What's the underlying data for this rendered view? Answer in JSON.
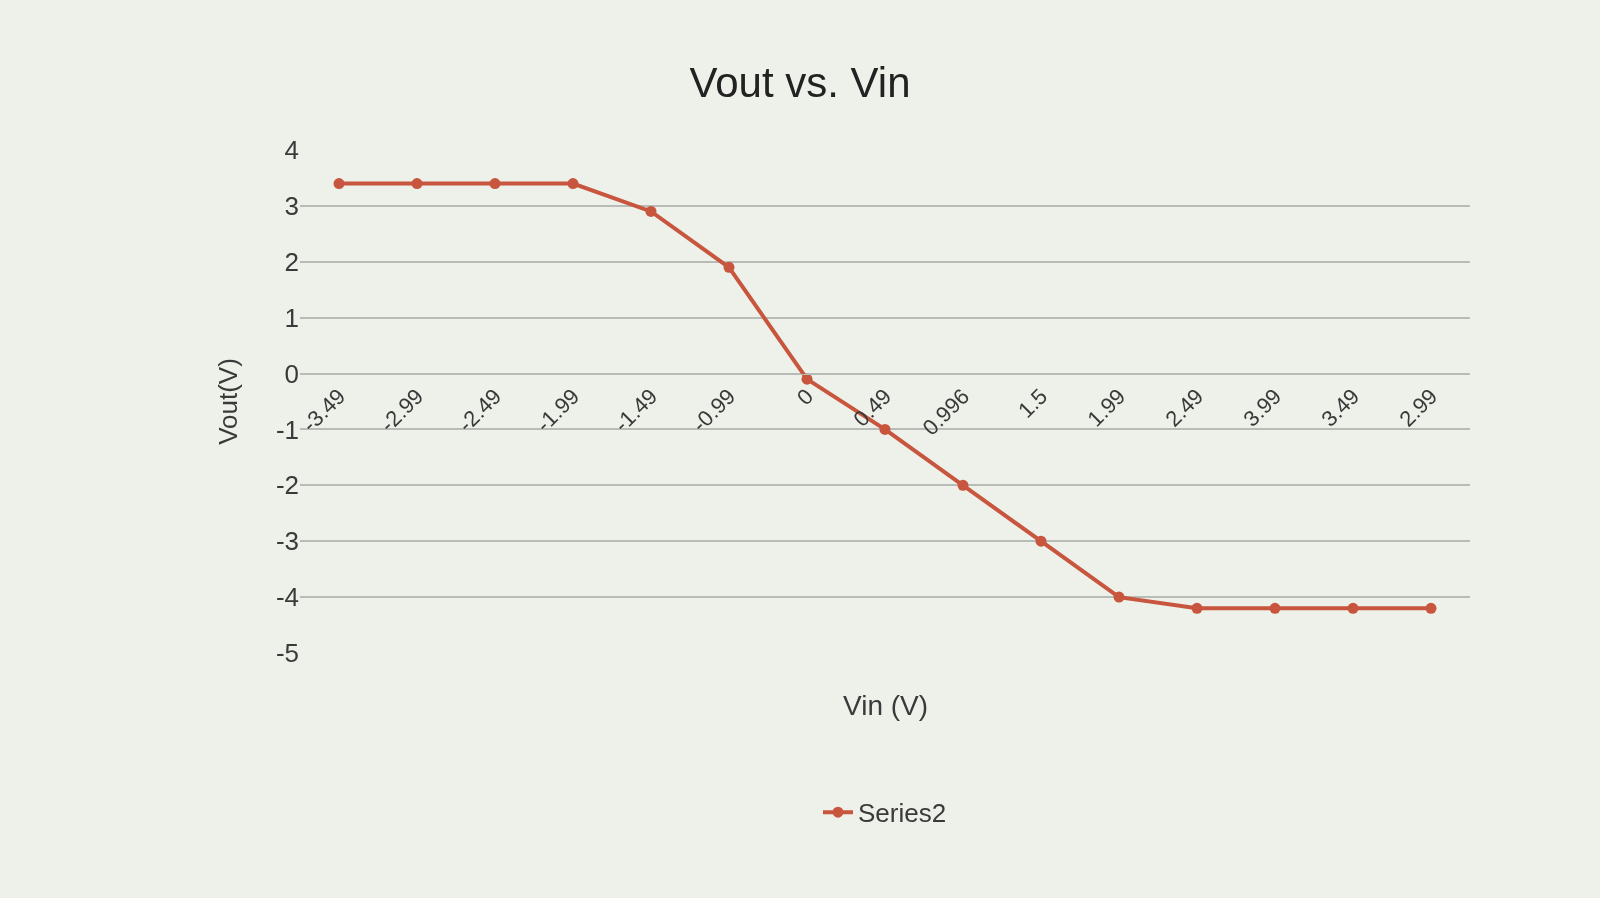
{
  "chart_data": {
    "type": "line",
    "title": "Vout vs. Vin",
    "xlabel": "Vin (V)",
    "ylabel": "Vout(V)",
    "categories": [
      "-3.49",
      "-2.99",
      "-2.49",
      "-1.99",
      "-1.49",
      "-0.99",
      "0",
      "0.49",
      "0.996",
      "1.5",
      "1.99",
      "2.49",
      "3.99",
      "3.49",
      "2.99"
    ],
    "series": [
      {
        "name": "Series2",
        "color": "#c8553d",
        "values": [
          3.4,
          3.4,
          3.4,
          3.4,
          2.9,
          1.9,
          -0.1,
          -1.0,
          -2.0,
          -3.0,
          -4.0,
          -4.2,
          -4.2,
          -4.2,
          -4.2
        ]
      }
    ],
    "ylim": [
      -5,
      4
    ],
    "yticks": [
      -5,
      -4,
      -3,
      -2,
      -1,
      0,
      1,
      2,
      3,
      4
    ],
    "grid": "y",
    "legend": "bottom",
    "marker": "circle"
  }
}
